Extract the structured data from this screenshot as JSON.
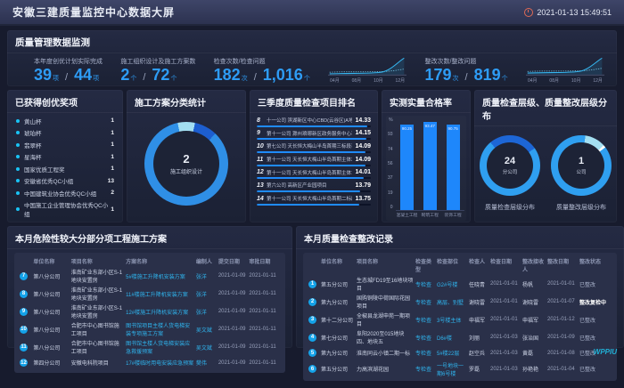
{
  "header": {
    "title": "安徽三建质量监控中心数据大屏",
    "datetime": "2021-01-13 15:49:51"
  },
  "overview": {
    "title": "质量管理数据监测",
    "stats": [
      {
        "label": "本年度创优计划实际完成",
        "v1": "39",
        "u1": "项",
        "sep": "/",
        "v2": "44",
        "u2": "项"
      },
      {
        "label": "施工组织设计及施工方案数",
        "v1": "2",
        "u1": "个",
        "sep": "/",
        "v2": "72",
        "u2": "个"
      },
      {
        "label": "检查次数/检查问题",
        "v1": "182",
        "u1": "次",
        "sep": "/",
        "v2": "1,016",
        "u2": "个"
      },
      {
        "label": "整改次数/整改问题",
        "v1": "179",
        "u1": "次",
        "sep": "/",
        "v2": "819",
        "u2": "个"
      }
    ],
    "trend_months": [
      "04月",
      "08月",
      "10月",
      "12月"
    ]
  },
  "awards": {
    "title": "已获得创优奖项",
    "items": [
      {
        "label": "黄山杯",
        "value": "1"
      },
      {
        "label": "琥珀杯",
        "value": "1"
      },
      {
        "label": "翡翠杯",
        "value": "1"
      },
      {
        "label": "星海杯",
        "value": "1"
      },
      {
        "label": "国家优质工程奖",
        "value": "1"
      },
      {
        "label": "安徽省优秀QC小组",
        "value": "13"
      },
      {
        "label": "中国建筑业协会优秀QC小组",
        "value": "2"
      },
      {
        "label": "中国施工企业管理协会优秀QC小组",
        "value": "1"
      }
    ]
  },
  "plan_stats": {
    "title": "施工方案分类统计",
    "center_value": "2",
    "center_label": "施工组织设计",
    "chart_data": {
      "type": "pie",
      "center_value": 2,
      "center_label": "施工组织设计"
    }
  },
  "ranking": {
    "title": "三季度质量检查项目排名",
    "items": [
      {
        "no": "8",
        "name": "十一公司 滨湖新区中心CBD(云谷区)A地块项目",
        "score": "14.33",
        "bar": 97
      },
      {
        "no": "9",
        "name": "第十一公司 滁州琅琊新区政务服务中心项目",
        "score": "14.15",
        "bar": 96
      },
      {
        "no": "10",
        "name": "第七公司 天长恒大梅山半岛首期三标段项目",
        "score": "14.09",
        "bar": 95
      },
      {
        "no": "11",
        "name": "第十一公司 天长恒大梅山半岛首期主体3标段",
        "score": "14.09",
        "bar": 95
      },
      {
        "no": "12",
        "name": "第十一公司 天长恒大梅山半岛首期主体1标段",
        "score": "14.01",
        "bar": 94
      },
      {
        "no": "13",
        "name": "第六公司 高新区产业园项目",
        "score": "13.79",
        "bar": 91
      },
      {
        "no": "14",
        "name": "第十一公司 天长恒大梅山半岛首期二标段",
        "score": "13.75",
        "bar": 90
      }
    ]
  },
  "pass_rate": {
    "title": "实测实量合格率",
    "chart_data": {
      "type": "bar",
      "ylabel": "%",
      "yticks": [
        "93",
        "74",
        "56",
        "37",
        "19",
        "0"
      ],
      "categories": [
        "混凝土工程",
        "砌筑工程",
        "装饰工程"
      ],
      "values": [
        90.25,
        93.47,
        90.75
      ]
    }
  },
  "levels": {
    "title": "质量检查层级、质量整改层级分布",
    "donuts": [
      {
        "value": "24",
        "unit": "分公司",
        "caption": "质量检查层级分布"
      },
      {
        "value": "1",
        "unit": "公司",
        "caption": "质量整改层级分布"
      }
    ]
  },
  "danger_plans": {
    "title": "本月危险性较大分部分项工程施工方案",
    "headers": [
      "单位名称",
      "项目名称",
      "方案名称",
      "编制人",
      "提交日期",
      "审批日期"
    ],
    "rows": [
      {
        "no": "7",
        "unit": "第八分公司",
        "project": "淮南矿业东部小区S-1地块安置房",
        "plan": "5#楼施工升降机安装方案",
        "author": "张洋",
        "submit": "2021-01-09",
        "approve": "2021-01-11"
      },
      {
        "no": "8",
        "unit": "第八分公司",
        "project": "淮南矿业东部小区S-1地块安置房",
        "plan": "11#楼施工升降机安装方案",
        "author": "张洋",
        "submit": "2021-01-09",
        "approve": "2021-01-11"
      },
      {
        "no": "9",
        "unit": "第八分公司",
        "project": "淮南矿业东部小区S-1地块安置房",
        "plan": "12#楼施工升降机安装方案",
        "author": "张洋",
        "submit": "2021-01-09",
        "approve": "2021-01-11"
      },
      {
        "no": "10",
        "unit": "第八分公司",
        "project": "合肥市中心图书馆施工项目",
        "plan": "图书馆项目主楼人货电梯安装专项施工方案",
        "author": "吴文斌",
        "submit": "2021-01-09",
        "approve": "2021-01-11"
      },
      {
        "no": "11",
        "unit": "第八分公司",
        "project": "合肥市中心图书馆施工项目",
        "plan": "图书馆主楼人货电梯安装应急救援预案",
        "author": "吴文斌",
        "submit": "2021-01-09",
        "approve": "2021-01-11"
      },
      {
        "no": "12",
        "unit": "第四分公司",
        "project": "安徽电科院项目",
        "plan": "17#楼临时用电安装应急预案",
        "author": "樊伟",
        "submit": "2021-01-09",
        "approve": "2021-01-11"
      }
    ]
  },
  "rectify_records": {
    "title": "本月质量检查整改记录",
    "headers": [
      "单位名称",
      "项目名称",
      "检查类型",
      "检查部位",
      "检查人",
      "检查日期",
      "整改接收人",
      "整改日期",
      "整改状态"
    ],
    "rows": [
      {
        "no": "1",
        "unit": "第五分公司",
        "project": "生态城FD19至16地块项目",
        "type": "专检查",
        "part": "G2#号楼",
        "inspector": "任晓青",
        "date": "2021-01-01",
        "receiver": "杨帆",
        "rdate": "2021-01-01",
        "status": "已整改",
        "status_type": "done"
      },
      {
        "no": "2",
        "unit": "第九分公司",
        "project": "国购铜陵中荷国际花园项目",
        "type": "专检查",
        "part": "高层、别墅",
        "inspector": "谢晓雷",
        "date": "2021-01-01",
        "receiver": "谢晓雷",
        "rdate": "2021-01-07",
        "status": "整改复检中",
        "status_type": "pending"
      },
      {
        "no": "3",
        "unit": "第十二分公司",
        "project": "全椒县龙湖申苑一期项目",
        "type": "专检查",
        "part": "3号楼主体",
        "inspector": "申福军",
        "date": "2021-01-01",
        "receiver": "申福军",
        "rdate": "2021-01-12",
        "status": "已整改",
        "status_type": "done"
      },
      {
        "no": "4",
        "unit": "第七分公司",
        "project": "阜阳2020至015地块四、地块五",
        "type": "专检查",
        "part": "D6#楼",
        "inspector": "刘丽",
        "date": "2021-01-03",
        "receiver": "张治国",
        "rdate": "2021-01-09",
        "status": "已整改",
        "status_type": "done"
      },
      {
        "no": "5",
        "unit": "第九分公司",
        "project": "淮南同云小镇二期一标",
        "type": "专检查",
        "part": "5#楼22层",
        "inspector": "赵空兵",
        "date": "2021-01-03",
        "receiver": "黄磊",
        "rdate": "2021-01-08",
        "status": "已整改",
        "status_type": "done"
      },
      {
        "no": "6",
        "unit": "第五分公司",
        "project": "力高滨湖花园",
        "type": "专检查",
        "part": "一号地块一期6号楼",
        "inspector": "罗磊",
        "date": "2021-01-03",
        "receiver": "孙艳艳",
        "rdate": "2021-01-04",
        "status": "已整改",
        "status_type": "done"
      }
    ]
  },
  "watermark": "WPPIU"
}
